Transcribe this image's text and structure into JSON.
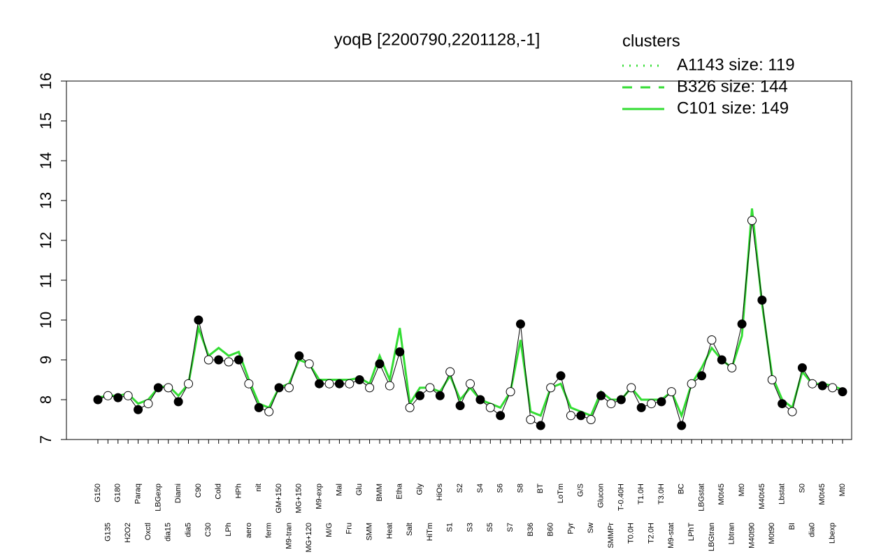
{
  "chart_data": {
    "type": "line",
    "title": "yoqB [2200790,2201128,-1]",
    "ylim": [
      7,
      16
    ],
    "yticks": [
      7,
      8,
      9,
      10,
      11,
      12,
      13,
      14,
      15,
      16
    ],
    "legend": {
      "title": "clusters",
      "position": "top-right",
      "entries": [
        {
          "label": "A1143 size: 119",
          "dash": "2,8"
        },
        {
          "label": "B326 size: 144",
          "dash": "14,12"
        },
        {
          "label": "C101 size: 149",
          "dash": ""
        }
      ]
    },
    "point_color": "#000000",
    "categories": [
      "G150",
      "G135",
      "G180",
      "H2O2",
      "Paraq",
      "Oxctl",
      "LBGexp",
      "dia15",
      "Diami",
      "dia5",
      "C90",
      "C30",
      "Cold",
      "LPh",
      "HPh",
      "aero",
      "nit",
      "ferm",
      "GM+150",
      "M9-tran",
      "MG+150",
      "MG+120",
      "M9-exp",
      "M/G",
      "Mal",
      "Fru",
      "Glu",
      "SMM",
      "BMM",
      "Heat",
      "Etha",
      "Salt",
      "Gly",
      "HiTm",
      "HiOs",
      "S1",
      "S2",
      "S3",
      "S4",
      "S5",
      "S6",
      "S7",
      "S8",
      "B36",
      "BT",
      "B60",
      "LoTm",
      "Pyr",
      "G/S",
      "Sw",
      "Glucon",
      "SMMPr",
      "T-0.40H",
      "T0.0H",
      "T1.0H",
      "T2.0H",
      "T3.0H",
      "M9-stat",
      "BC",
      "LPhT",
      "LBGstat",
      "LBGtran",
      "M0t45",
      "Lbtran",
      "Mt0",
      "M40t90",
      "M40t45",
      "M0t90",
      "Lbstat",
      "BI",
      "S0",
      "dia0",
      "M0t45",
      "Lbexp",
      "Mt0"
    ],
    "values": [
      8.0,
      8.1,
      8.05,
      8.1,
      7.75,
      7.9,
      8.3,
      8.3,
      7.95,
      8.4,
      10.0,
      9.0,
      9.0,
      8.95,
      9.0,
      8.4,
      7.8,
      7.7,
      8.3,
      8.3,
      9.1,
      8.9,
      8.4,
      8.4,
      8.4,
      8.4,
      8.5,
      8.3,
      8.9,
      8.35,
      9.2,
      7.8,
      8.1,
      8.3,
      8.1,
      8.7,
      7.85,
      8.4,
      8.0,
      7.8,
      7.6,
      8.2,
      9.9,
      7.5,
      7.35,
      8.3,
      8.6,
      7.6,
      7.6,
      7.5,
      8.1,
      7.9,
      8.0,
      8.3,
      7.8,
      7.9,
      7.95,
      8.2,
      7.35,
      8.4,
      8.6,
      9.5,
      9.0,
      8.8,
      9.9,
      12.5,
      10.5,
      8.5,
      7.9,
      7.7,
      8.8,
      8.4,
      8.35,
      8.3,
      8.2
    ],
    "series": [
      {
        "name": "C101 size: 149",
        "color": "#33dd33",
        "values": [
          8.05,
          8.1,
          8.1,
          8.15,
          7.9,
          8.0,
          8.3,
          8.35,
          8.1,
          8.4,
          9.8,
          9.1,
          9.3,
          9.1,
          9.2,
          8.5,
          7.9,
          7.8,
          8.3,
          8.4,
          9.0,
          8.9,
          8.5,
          8.5,
          8.5,
          8.5,
          8.55,
          8.4,
          9.1,
          8.5,
          9.8,
          7.9,
          8.3,
          8.3,
          8.2,
          8.6,
          8.0,
          8.3,
          8.0,
          7.9,
          7.8,
          8.2,
          9.5,
          7.7,
          7.6,
          8.3,
          8.4,
          7.8,
          7.7,
          7.6,
          8.2,
          8.0,
          8.0,
          8.3,
          8.0,
          8.0,
          8.0,
          8.2,
          7.6,
          8.4,
          8.8,
          9.3,
          9.0,
          8.8,
          9.6,
          12.8,
          10.4,
          8.6,
          8.0,
          7.8,
          8.7,
          8.4,
          8.4,
          8.35,
          8.25
        ]
      }
    ]
  }
}
